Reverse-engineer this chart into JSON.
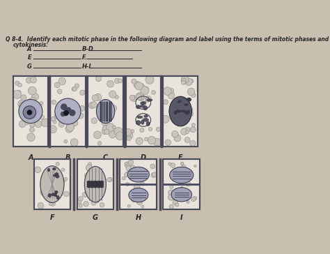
{
  "bg_color": "#c8bfb0",
  "paper_color": "#d8d0c4",
  "cell_bg": "#e8e4dc",
  "cell_border_color": "#4a4a5a",
  "bubble_fill": "#c8c4bc",
  "bubble_edge": "#8a8888",
  "nucleus_fill": "#9090a8",
  "nucleus_edge": "#404050",
  "chromatin_dark": "#202030",
  "line_color": "#303040",
  "title1": "Q 8-4.  Identify each mitotic phase in the following diagram and label using the terms of mitotic phases and",
  "title2": "cytokinesis:",
  "row1_labels": [
    "A",
    "B",
    "C",
    "D",
    "E"
  ],
  "row2_labels": [
    "F",
    "G",
    "H",
    "I"
  ],
  "fill_labels": [
    "A",
    "E",
    "G"
  ],
  "fill_seps": [
    "B-D.",
    "F.",
    "H-I."
  ],
  "text_color": "#282828"
}
